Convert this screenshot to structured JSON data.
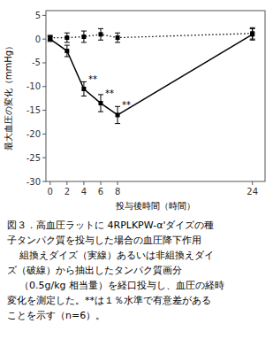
{
  "chart_data": {
    "type": "line",
    "xlabel": "投与後時間（時間）",
    "ylabel": "最大血圧の変化（mmHg）",
    "caption": "図３．高血圧ラットに 4RPLKPW-α'ダイズの種\n子タンパク質を投与した場合の血圧降下作用\n    組換えダイズ（実線）あるいは非組換えダイ\nズ（破線）から抽出したタンパク質画分\n    （0.5g/kg 相当量）を経口投与し、血圧の経時\n変化を測定した。**は１％水準で有意差がある\nことを示す（n=6）。",
    "series": [
      {
        "color": "black",
        "marker": "square",
        "line_style": "solid",
        "x": [
          0,
          2,
          4,
          6,
          8,
          24
        ],
        "values": [
          0,
          -2.5,
          -10.5,
          -13.5,
          -16.0,
          1.0
        ],
        "errors": [
          0.5,
          1.2,
          1.5,
          1.8,
          1.8,
          1.2
        ]
      },
      {
        "color": "black",
        "marker": "square",
        "line_style": "dotted",
        "x": [
          0,
          2,
          4,
          6,
          8,
          24
        ],
        "values": [
          0.3,
          0.3,
          0.5,
          1.0,
          0.3,
          1.2
        ],
        "errors": [
          0.5,
          1.0,
          1.2,
          1.2,
          1.0,
          1.2
        ]
      }
    ],
    "annotations": [
      {
        "x": 4,
        "y": -8.5,
        "text": "**"
      },
      {
        "x": 6,
        "y": -11.5,
        "text": "**"
      },
      {
        "x": 8,
        "y": -13.8,
        "text": "**"
      }
    ],
    "xlim": [
      -0.5,
      25.5
    ],
    "ylim": [
      -30,
      6
    ],
    "xticks": [
      0,
      2,
      4,
      6,
      8,
      24
    ],
    "yticks": [
      5,
      0,
      -5,
      -10,
      -15,
      -20,
      -25,
      -30
    ],
    "grid": false
  }
}
